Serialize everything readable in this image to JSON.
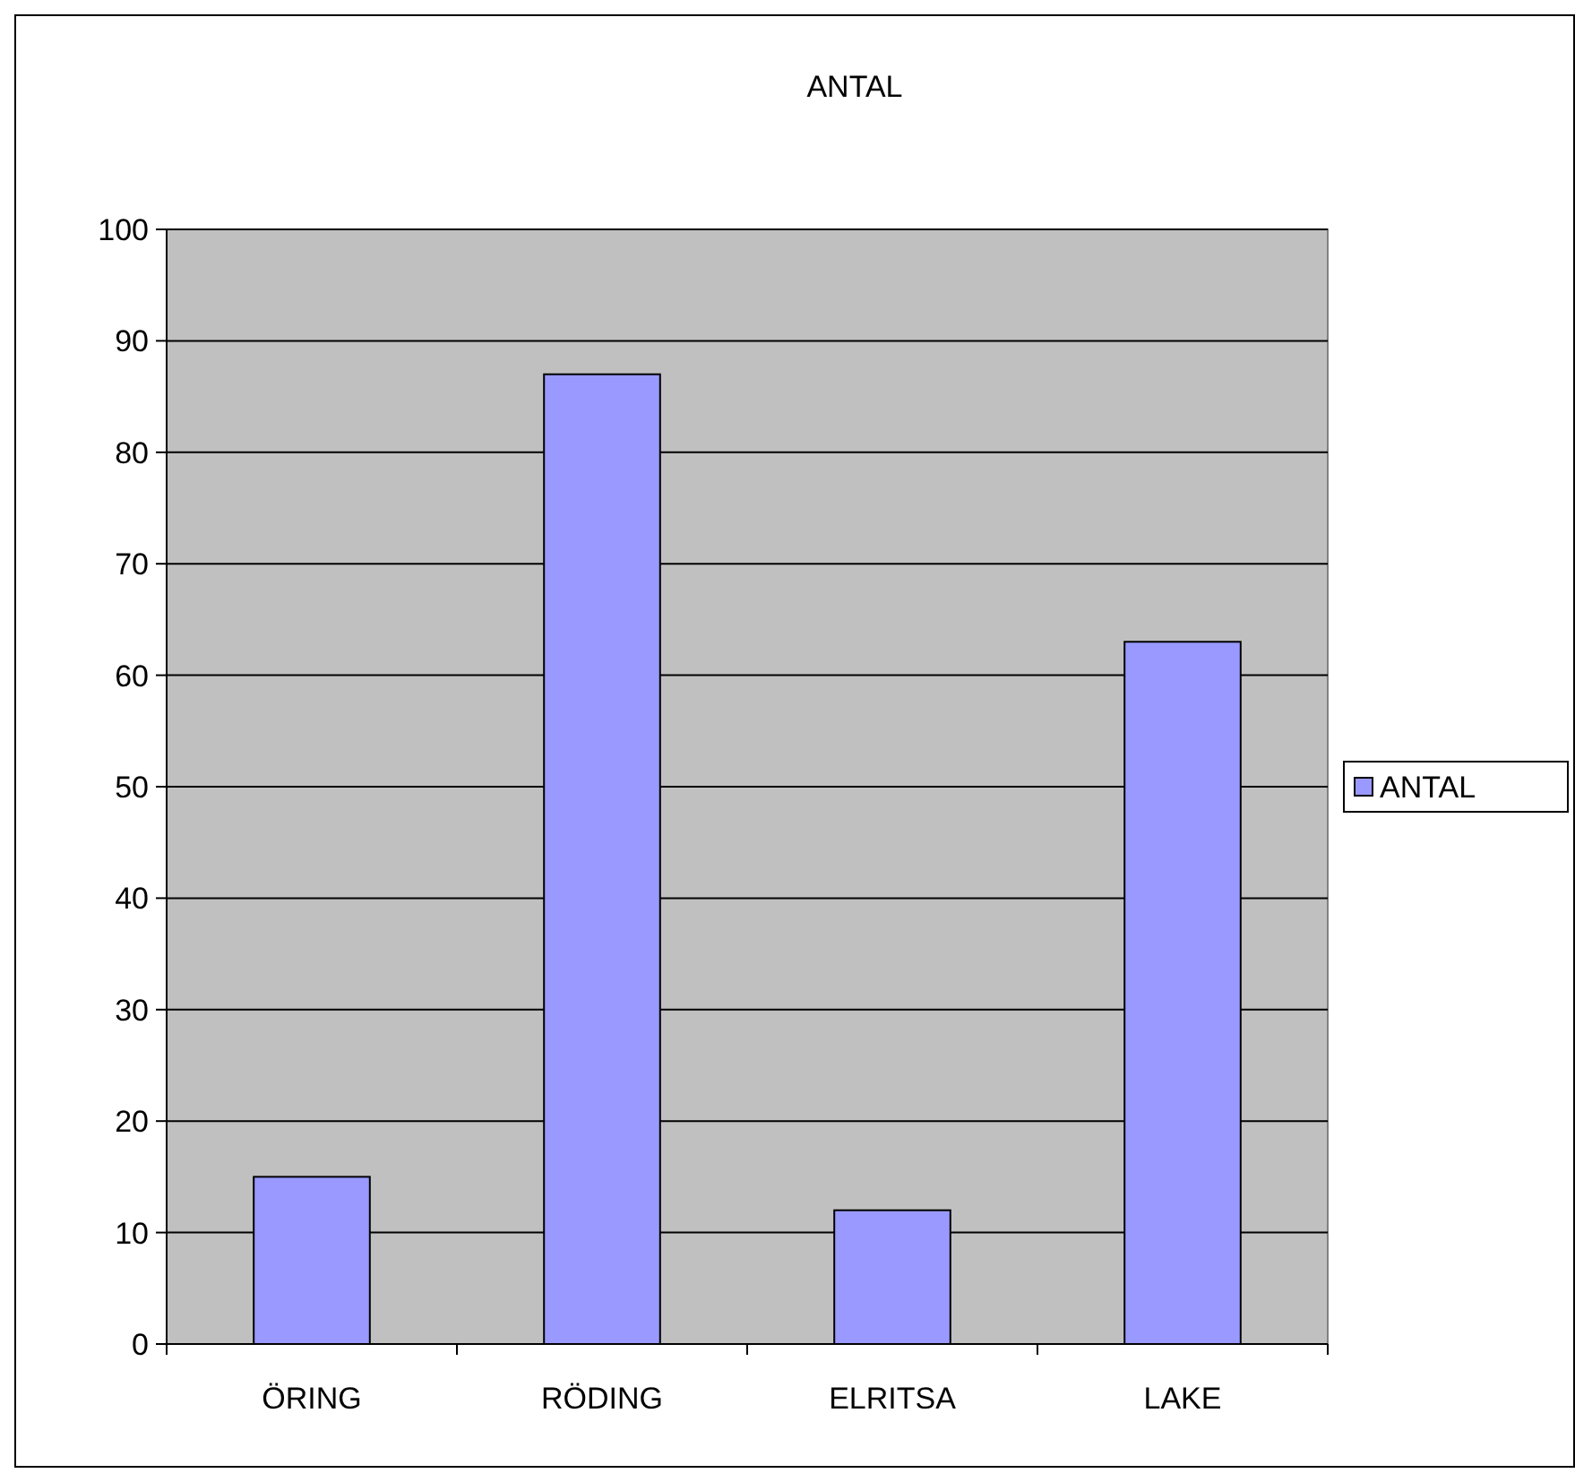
{
  "chart_data": {
    "type": "bar",
    "title": "ANTAL",
    "categories": [
      "ÖRING",
      "RÖDING",
      "ELRITSA",
      "LAKE"
    ],
    "series": [
      {
        "name": "ANTAL",
        "color": "#9999ff",
        "values": [
          15,
          87,
          12,
          63
        ]
      }
    ],
    "ylim": [
      0,
      100
    ],
    "yticks": [
      0,
      10,
      20,
      30,
      40,
      50,
      60,
      70,
      80,
      90,
      100
    ],
    "grid": "y",
    "legend": "right"
  }
}
